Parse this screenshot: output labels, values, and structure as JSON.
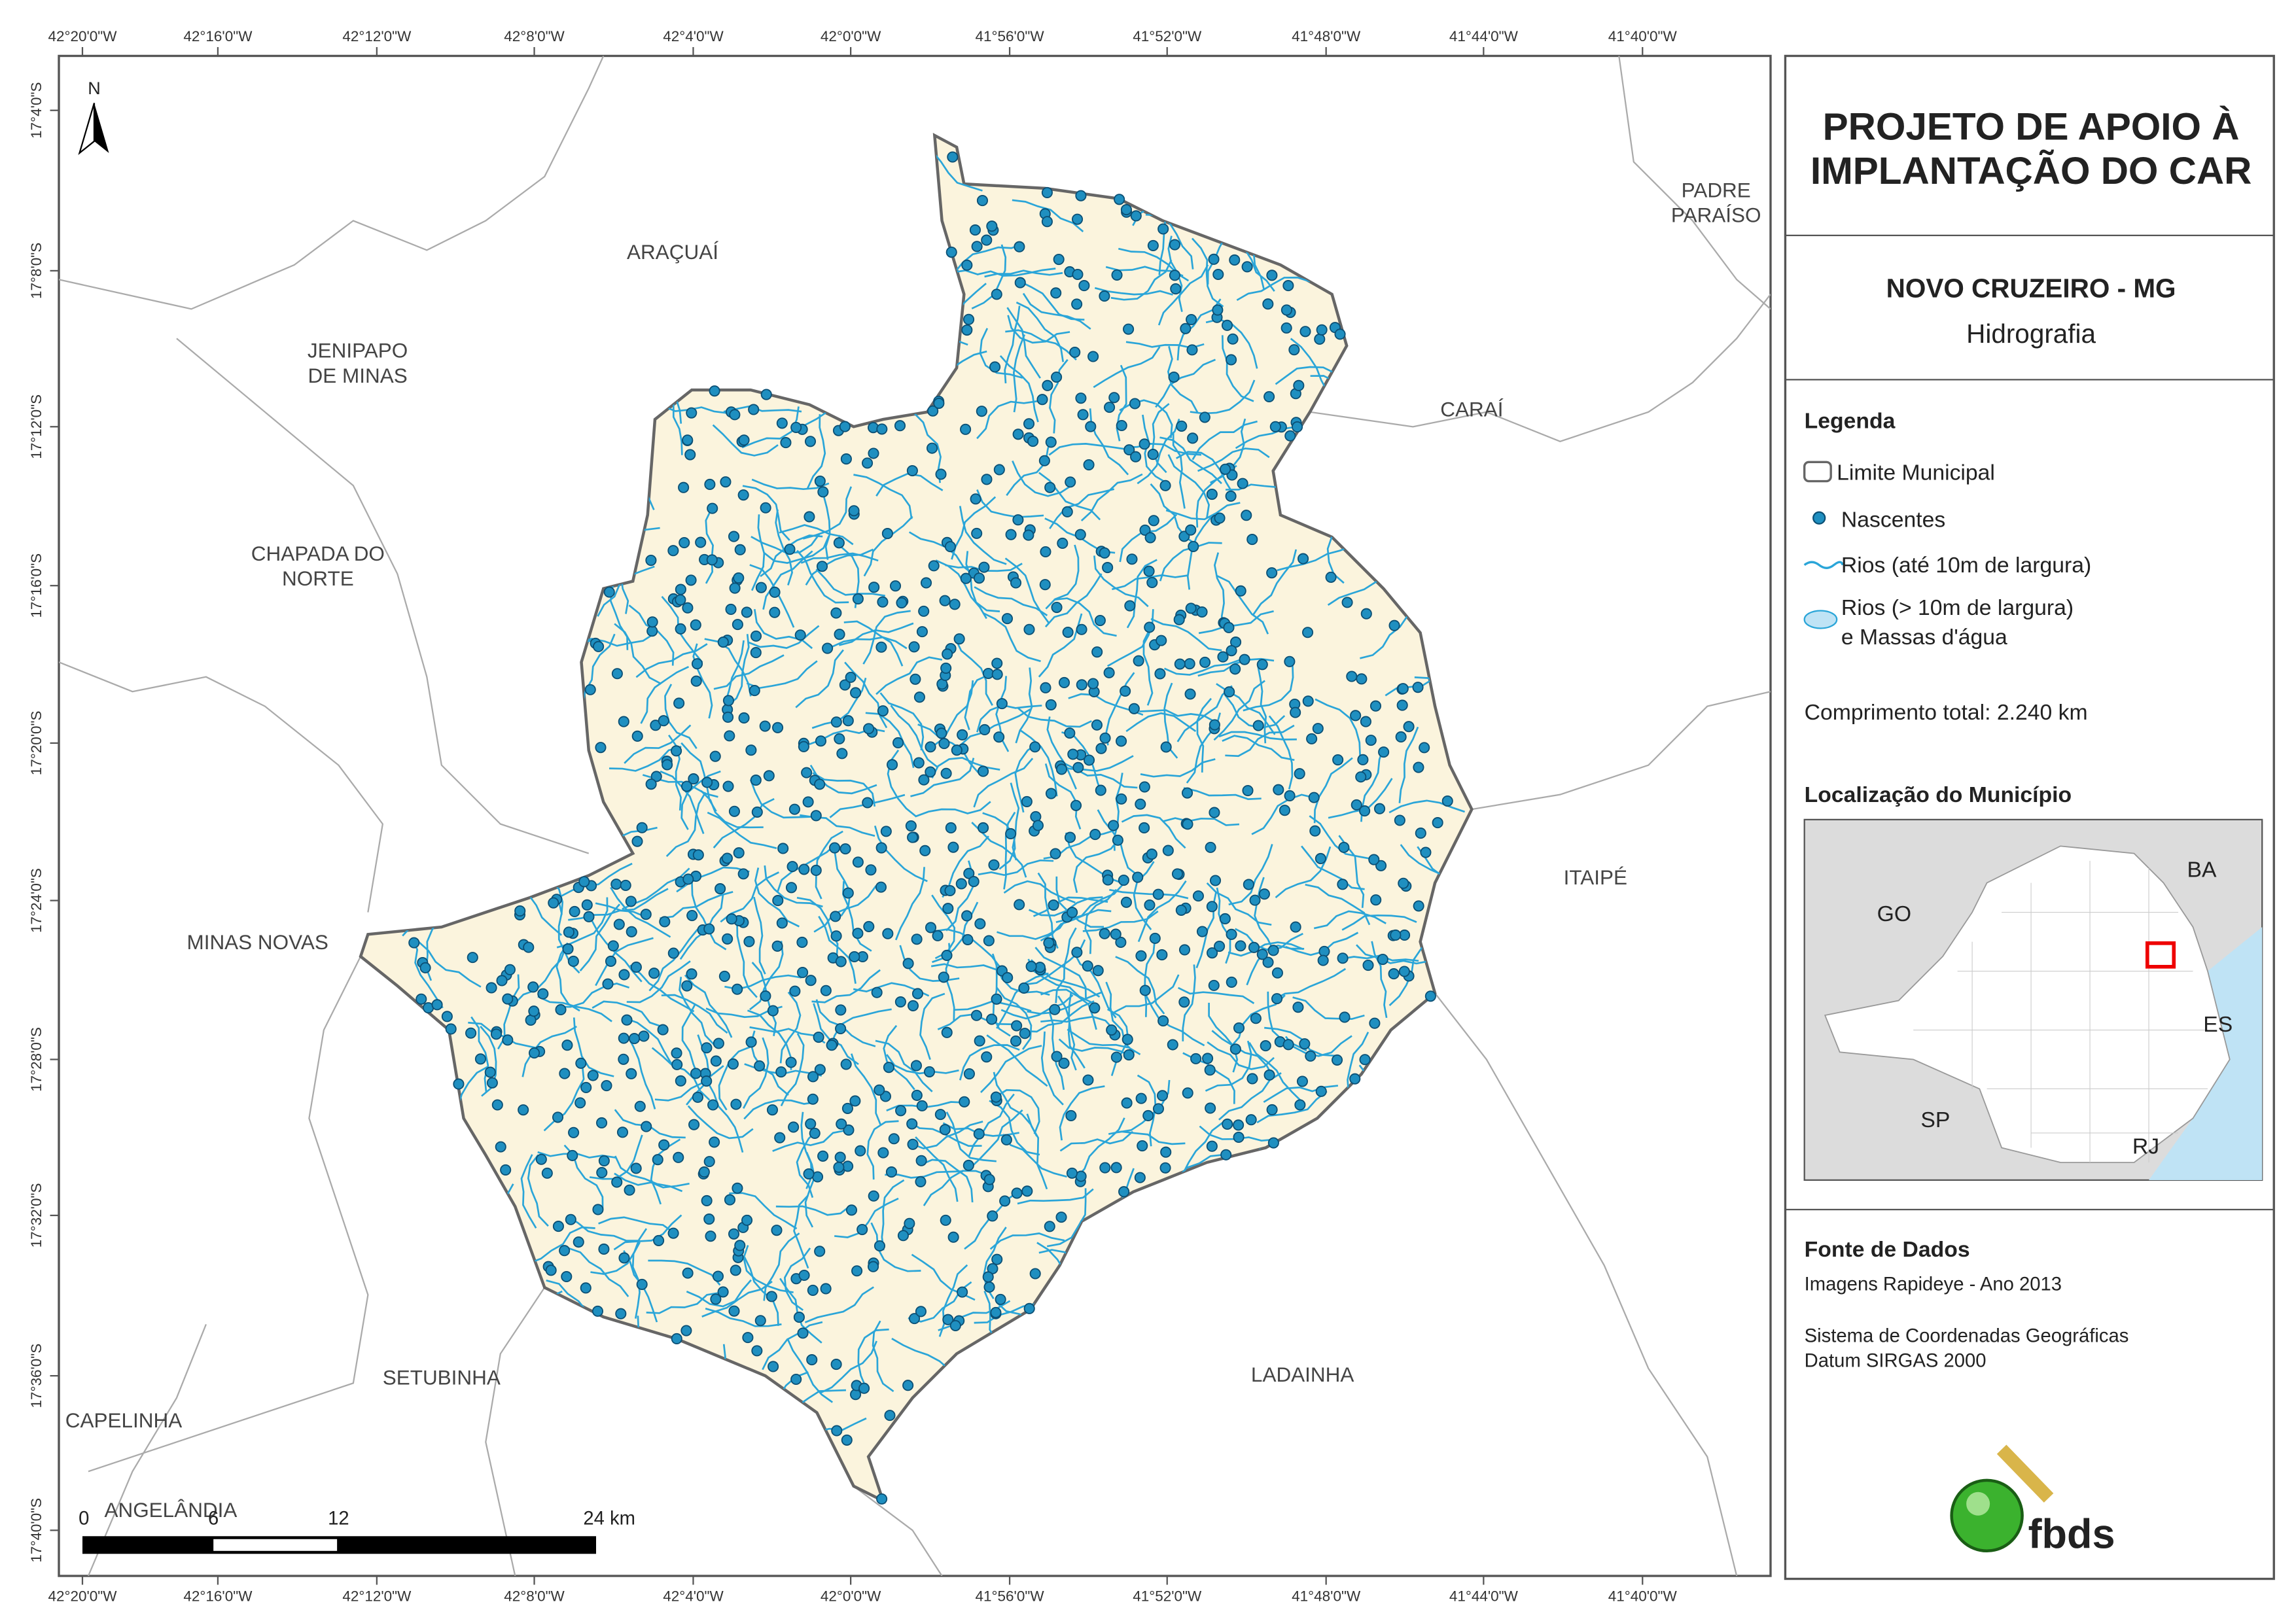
{
  "map": {
    "lon_labels": [
      "42°20'0\"W",
      "42°16'0\"W",
      "42°12'0\"W",
      "42°8'0\"W",
      "42°4'0\"W",
      "42°0'0\"W",
      "41°56'0\"W",
      "41°52'0\"W",
      "41°48'0\"W",
      "41°44'0\"W",
      "41°40'0\"W"
    ],
    "lat_labels": [
      "17°4'0\"S",
      "17°8'0\"S",
      "17°12'0\"S",
      "17°16'0\"S",
      "17°20'0\"S",
      "17°24'0\"S",
      "17°28'0\"S",
      "17°32'0\"S",
      "17°36'0\"S",
      "17°40'0\"S"
    ],
    "north": "N",
    "places": [
      "ARAÇUAÍ",
      "PADRE",
      "PARAÍSO",
      "JENIPAPO",
      "DE MINAS",
      "CARAÍ",
      "CHAPADA DO",
      "NORTE",
      "ITAIPÉ",
      "MINAS NOVAS",
      "SETUBINHA",
      "LADAINHA",
      "CAPELINHA",
      "ANGELÂNDIA"
    ],
    "scale": [
      "0",
      "6",
      "12",
      "24 km"
    ]
  },
  "panel": {
    "title": [
      "PROJETO DE APOIO À",
      "IMPLANTAÇÃO DO CAR"
    ],
    "municipality": "NOVO CRUZEIRO - MG",
    "theme": "Hidrografia",
    "legend_title": "Legenda",
    "legend": [
      "Limite Municipal",
      "Nascentes",
      "Rios (até 10m de largura)",
      "Rios (> 10m de largura)",
      "e Massas d'água"
    ],
    "total": "Comprimento total:  2.240 km",
    "location_title": "Localização do Município",
    "states": [
      "BA",
      "GO",
      "ES",
      "SP",
      "RJ"
    ],
    "source_title": "Fonte de Dados",
    "source": [
      "Imagens Rapideye - Ano 2013",
      "Sistema de Coordenadas Geográficas",
      "Datum SIRGAS 2000"
    ],
    "logo": "fbds"
  }
}
